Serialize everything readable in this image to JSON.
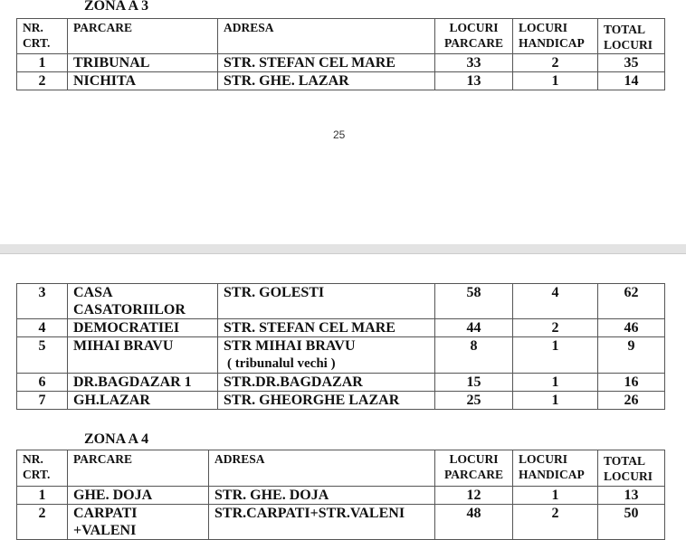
{
  "headers": {
    "nr": "NR. CRT.",
    "nr_l1": "NR.",
    "nr_l2": "CRT.",
    "parcare": "PARCARE",
    "adresa": "ADRESA",
    "lp_l1": "LOCURI",
    "lp_l2": "PARCARE",
    "lh_l1": "LOCURI",
    "lh_l2": "HANDICAP",
    "tl_l1": "TOTAL",
    "tl_l2": "LOCURI"
  },
  "page1": {
    "zone_title": "ZONA A 3",
    "rows": [
      {
        "nr": "1",
        "parcare": "TRIBUNAL",
        "adresa": "STR. STEFAN CEL MARE",
        "locuri": "33",
        "handicap": "2",
        "total": "35"
      },
      {
        "nr": "2",
        "parcare": "NICHITA",
        "adresa": "STR. GHE. LAZAR",
        "locuri": "13",
        "handicap": "1",
        "total": "14"
      }
    ],
    "page_number": "25"
  },
  "page2": {
    "rows": [
      {
        "nr": "3",
        "parcare": "CASA CASATORIILOR",
        "adresa": "STR. GOLESTI",
        "locuri": "58",
        "handicap": "4",
        "total": "62"
      },
      {
        "nr": "4",
        "parcare": "DEMOCRATIEI",
        "adresa": "STR. STEFAN CEL MARE",
        "locuri": "44",
        "handicap": "2",
        "total": "46"
      },
      {
        "nr": "5",
        "parcare": "MIHAI BRAVU",
        "adresa": "STR MIHAI BRAVU",
        "adresa_note": "( tribunalul vechi )",
        "locuri": "8",
        "handicap": "1",
        "total": "9"
      },
      {
        "nr": "6",
        "parcare": "DR.BAGDAZAR 1",
        "adresa": "STR.DR.BAGDAZAR",
        "locuri": "15",
        "handicap": "1",
        "total": "16"
      },
      {
        "nr": "7",
        "parcare": "GH.LAZAR",
        "adresa": "STR. GHEORGHE LAZAR",
        "locuri": "25",
        "handicap": "1",
        "total": "26"
      }
    ],
    "zone_title": "ZONA A 4",
    "zone4_rows": [
      {
        "nr": "1",
        "parcare": "GHE. DOJA",
        "adresa": "STR. GHE. DOJA",
        "locuri": "12",
        "handicap": "1",
        "total": "13"
      },
      {
        "nr": "2",
        "parcare": "CARPATI +VALENI",
        "adresa": "STR.CARPATI+STR.VALENI",
        "locuri": "48",
        "handicap": "2",
        "total": "50"
      }
    ]
  }
}
